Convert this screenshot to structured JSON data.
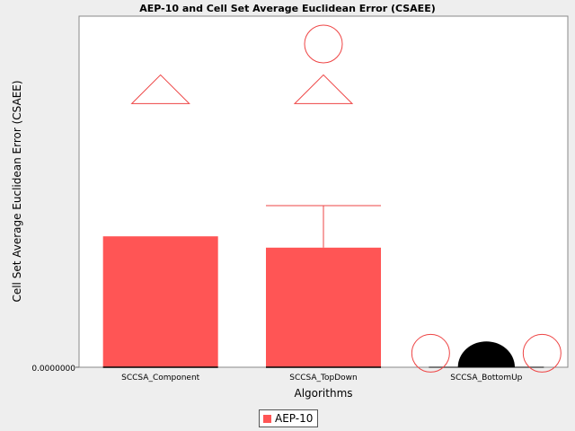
{
  "chart_data": {
    "type": "bar",
    "title": "AEP-10 and Cell Set Average Euclidean Error (CSAEE)",
    "xlabel": "Algorithms",
    "ylabel": "Cell Set Average Euclidean Error (CSAEE)",
    "y_tick_labels": [
      "0.0000000"
    ],
    "categories": [
      "SCCSA_Component",
      "SCCSA_TopDown",
      "SCCSA_BottomUp"
    ],
    "ylim": [
      0,
      1.0
    ],
    "series": [
      {
        "name": "AEP-10",
        "color": "#ff5555",
        "values": [
          0.405,
          0.37,
          0.0
        ],
        "error_upper": [
          null,
          0.5,
          null
        ],
        "outlier_triangles": [
          0.86,
          0.86,
          null
        ],
        "outlier_circles": [
          [],
          [
            1.0
          ],
          [
            0.06,
            0.06
          ]
        ]
      }
    ],
    "extra_marks": [
      {
        "category": "SCCSA_BottomUp",
        "shape": "semicircle",
        "color": "#000000",
        "value": 0.08
      }
    ],
    "grid": false,
    "legend_position": "bottom-center"
  }
}
